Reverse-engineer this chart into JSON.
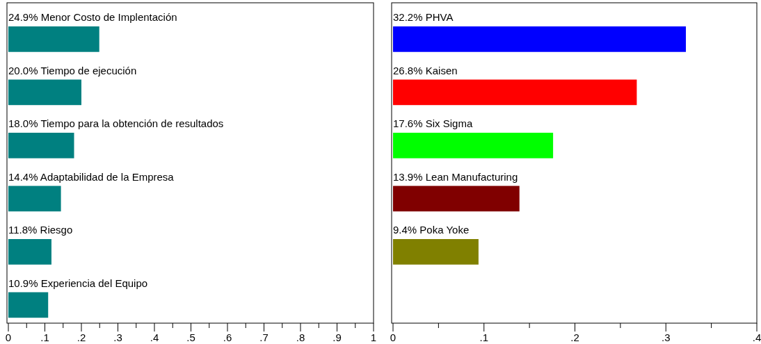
{
  "chart_data": [
    {
      "type": "bar",
      "orientation": "horizontal",
      "categories": [
        "Menor Costo de Implentación",
        "Tiempo de ejecución",
        "Tiempo para la obtención de resultados",
        "Adaptabilidad de la Empresa",
        "Riesgo",
        "Experiencia del Equipo"
      ],
      "values": [
        0.249,
        0.2,
        0.18,
        0.144,
        0.118,
        0.109
      ],
      "value_labels": [
        "24.9%",
        "20.0%",
        "18.0%",
        "14.4%",
        "11.8%",
        "10.9%"
      ],
      "color": "#008080",
      "xlim": [
        0,
        1
      ],
      "xticks": [
        {
          "value": 0,
          "label": "0"
        },
        {
          "value": 0.05,
          "label": null
        },
        {
          "value": 0.1,
          "label": ".1"
        },
        {
          "value": 0.15,
          "label": null
        },
        {
          "value": 0.2,
          "label": ".2"
        },
        {
          "value": 0.25,
          "label": null
        },
        {
          "value": 0.3,
          "label": ".3"
        },
        {
          "value": 0.35,
          "label": null
        },
        {
          "value": 0.4,
          "label": ".4"
        },
        {
          "value": 0.45,
          "label": null
        },
        {
          "value": 0.5,
          "label": ".5"
        },
        {
          "value": 0.55,
          "label": null
        },
        {
          "value": 0.6,
          "label": ".6"
        },
        {
          "value": 0.65,
          "label": null
        },
        {
          "value": 0.7,
          "label": ".7"
        },
        {
          "value": 0.75,
          "label": null
        },
        {
          "value": 0.8,
          "label": ".8"
        },
        {
          "value": 0.85,
          "label": null
        },
        {
          "value": 0.9,
          "label": ".9"
        },
        {
          "value": 0.95,
          "label": null
        },
        {
          "value": 1,
          "label": "1"
        }
      ]
    },
    {
      "type": "bar",
      "orientation": "horizontal",
      "categories": [
        "PHVA",
        "Kaisen",
        "Six Sigma",
        "Lean Manufacturing",
        "Poka Yoke"
      ],
      "values": [
        0.322,
        0.268,
        0.176,
        0.139,
        0.094
      ],
      "value_labels": [
        "32.2%",
        "26.8%",
        "17.6%",
        "13.9%",
        "9.4%"
      ],
      "colors": [
        "#0000ff",
        "#ff0000",
        "#00ff00",
        "#800000",
        "#808000"
      ],
      "xlim": [
        0,
        0.4
      ],
      "xticks": [
        {
          "value": 0,
          "label": "0"
        },
        {
          "value": 0.05,
          "label": null
        },
        {
          "value": 0.1,
          "label": ".1"
        },
        {
          "value": 0.15,
          "label": null
        },
        {
          "value": 0.2,
          "label": ".2"
        },
        {
          "value": 0.25,
          "label": null
        },
        {
          "value": 0.3,
          "label": ".3"
        },
        {
          "value": 0.35,
          "label": null
        },
        {
          "value": 0.4,
          "label": ".4"
        }
      ]
    }
  ]
}
